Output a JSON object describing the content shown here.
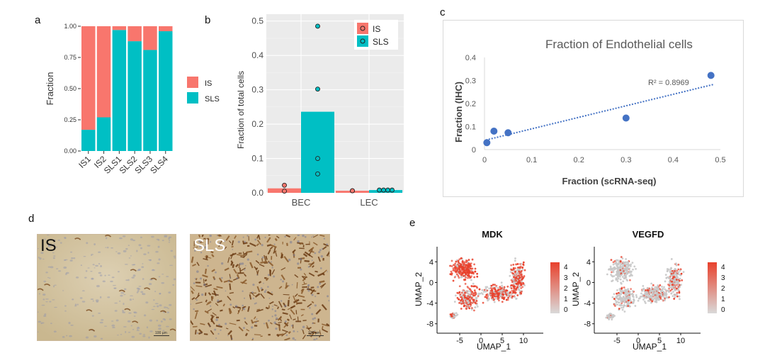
{
  "panel_labels": {
    "a": "a",
    "b": "b",
    "c": "c",
    "d": "d",
    "e": "e"
  },
  "colors": {
    "IS": "#f8766d",
    "SLS": "#00bfc4",
    "trend": "#4472c4",
    "scatter_point": "#4472c4",
    "panel_bg": "#ebebeb",
    "grid": "#ffffff",
    "umap_grey": "#c8c8c8",
    "umap_red": "#e8412c"
  },
  "chart_data": [
    {
      "id": "a",
      "type": "bar",
      "stacked": true,
      "categories": [
        "IS1",
        "IS2",
        "SLS1",
        "SLS2",
        "SLS3",
        "SLS4"
      ],
      "series": [
        {
          "name": "SLS",
          "values": [
            0.17,
            0.27,
            0.97,
            0.88,
            0.81,
            0.96
          ]
        },
        {
          "name": "IS",
          "values": [
            0.83,
            0.73,
            0.03,
            0.12,
            0.19,
            0.04
          ]
        }
      ],
      "ylabel": "Fraction",
      "ylim": [
        0,
        1
      ],
      "yticks": [
        "0.00",
        "0.25",
        "0.50",
        "0.75",
        "1.00"
      ],
      "legend": [
        "IS",
        "SLS"
      ],
      "legend_position": "right"
    },
    {
      "id": "b",
      "type": "bar",
      "overlay": "points",
      "categories": [
        "BEC",
        "LEC"
      ],
      "series": [
        {
          "name": "IS",
          "values": [
            0.013,
            0.006
          ],
          "points": [
            [
              0.022,
              0.005
            ],
            [
              0.006,
              0.006
            ]
          ]
        },
        {
          "name": "SLS",
          "values": [
            0.236,
            0.008
          ],
          "points": [
            [
              0.485,
              0.302,
              0.1,
              0.055
            ],
            [
              0.008,
              0.008,
              0.008,
              0.008
            ]
          ]
        }
      ],
      "ylabel": "Fraction of total cells",
      "ylim": [
        0,
        0.52
      ],
      "yticks": [
        "0.0",
        "0.1",
        "0.2",
        "0.3",
        "0.4",
        "0.5"
      ],
      "legend": [
        "IS",
        "SLS"
      ],
      "legend_position": "top-right",
      "grid": true
    },
    {
      "id": "c",
      "type": "scatter",
      "title": "Fraction of Endothelial cells",
      "x": [
        0.005,
        0.02,
        0.05,
        0.3,
        0.48
      ],
      "y": [
        0.03,
        0.08,
        0.073,
        0.137,
        0.322
      ],
      "trend": {
        "slope": 0.5,
        "intercept": 0.04
      },
      "annotation": "R² = 0.8969",
      "xlabel": "Fraction (scRNA-seq)",
      "ylabel": "Fraction (IHC)",
      "xlim": [
        0,
        0.5
      ],
      "ylim": [
        0,
        0.4
      ],
      "xticks": [
        "0",
        "0.1",
        "0.2",
        "0.3",
        "0.4",
        "0.5"
      ],
      "yticks": [
        "0",
        "0.1",
        "0.2",
        "0.3",
        "0.4"
      ]
    }
  ],
  "micrographs": [
    {
      "tag": "IS",
      "scale": "100 µm"
    },
    {
      "tag": "SLS",
      "scale": "100 µm"
    }
  ],
  "umap": {
    "xlabel": "UMAP_1",
    "ylabel": "UMAP_2",
    "xticks": [
      "-5",
      "0",
      "5",
      "10"
    ],
    "yticks": [
      "4",
      "0",
      "-4",
      "-8"
    ],
    "colorbar_ticks": [
      "4",
      "3",
      "2",
      "1",
      "0"
    ],
    "plots": [
      {
        "title": "MDK",
        "intensity": 0.85
      },
      {
        "title": "VEGFD",
        "intensity": 0.35
      }
    ]
  }
}
